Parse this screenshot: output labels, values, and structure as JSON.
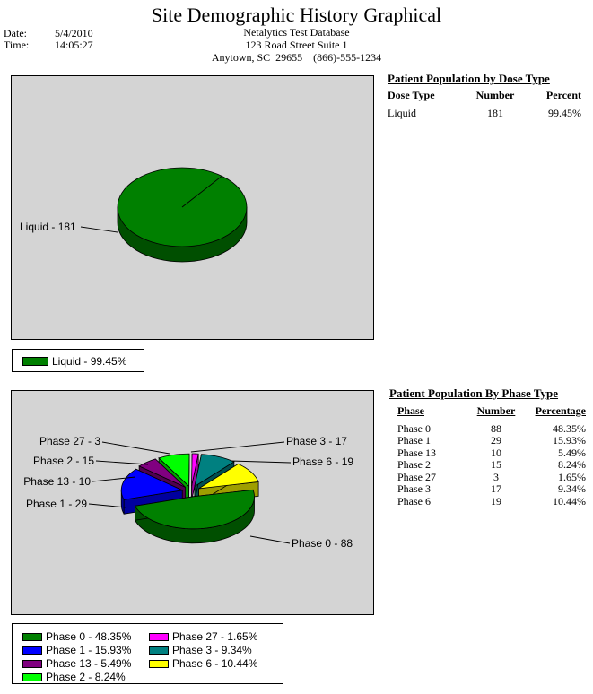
{
  "report": {
    "title": "Site Demographic History Graphical",
    "date_label": "Date:",
    "date_value": "5/4/2010",
    "time_label": "Time:",
    "time_value": "14:05:27",
    "org_name": "Netalytics Test Database",
    "address_line1": "123 Road Street Suite 1",
    "address_line2": "Anytown, SC  29655    (866)-555-1234"
  },
  "dose_table": {
    "title": "Patient Population by Dose Type",
    "headers": [
      "Dose Type",
      "Number",
      "Percent"
    ],
    "rows": [
      [
        "Liquid",
        "181",
        "99.45%"
      ]
    ]
  },
  "phase_table": {
    "title": "Patient Population By Phase Type",
    "headers": [
      "Phase",
      "Number",
      "Percentage"
    ],
    "rows": [
      [
        "Phase 0",
        "88",
        "48.35%"
      ],
      [
        "Phase 1",
        "29",
        "15.93%"
      ],
      [
        "Phase 13",
        "10",
        "5.49%"
      ],
      [
        "Phase 2",
        "15",
        "8.24%"
      ],
      [
        "Phase 27",
        "3",
        "1.65%"
      ],
      [
        "Phase 3",
        "17",
        "9.34%"
      ],
      [
        "Phase 6",
        "19",
        "10.44%"
      ]
    ]
  },
  "chart_data": [
    {
      "type": "pie",
      "title": "",
      "slices": [
        {
          "label": "Liquid",
          "value": 181,
          "percent": 99.45,
          "color": "#008000",
          "slice_label": "Liquid - 181",
          "legend_label": "Liquid - 99.45%"
        }
      ]
    },
    {
      "type": "pie",
      "title": "",
      "slices": [
        {
          "label": "Phase 0",
          "value": 88,
          "percent": 48.35,
          "color": "#008000",
          "slice_label": "Phase 0 - 88",
          "legend_label": "Phase 0 - 48.35%"
        },
        {
          "label": "Phase 1",
          "value": 29,
          "percent": 15.93,
          "color": "#0000ff",
          "slice_label": "Phase 1 - 29",
          "legend_label": "Phase 1 - 15.93%"
        },
        {
          "label": "Phase 13",
          "value": 10,
          "percent": 5.49,
          "color": "#800080",
          "slice_label": "Phase 13 - 10",
          "legend_label": "Phase 13 - 5.49%"
        },
        {
          "label": "Phase 2",
          "value": 15,
          "percent": 8.24,
          "color": "#00ff00",
          "slice_label": "Phase 2 - 15",
          "legend_label": "Phase 2 - 8.24%"
        },
        {
          "label": "Phase 27",
          "value": 3,
          "percent": 1.65,
          "color": "#ff00ff",
          "slice_label": "Phase 27 - 3",
          "legend_label": "Phase 27 - 1.65%"
        },
        {
          "label": "Phase 3",
          "value": 17,
          "percent": 9.34,
          "color": "#008080",
          "slice_label": "Phase 3 - 17",
          "legend_label": "Phase 3 - 9.34%"
        },
        {
          "label": "Phase 6",
          "value": 19,
          "percent": 10.44,
          "color": "#ffff00",
          "slice_label": "Phase 6 - 19",
          "legend_label": "Phase 6 - 10.44%"
        }
      ]
    }
  ]
}
